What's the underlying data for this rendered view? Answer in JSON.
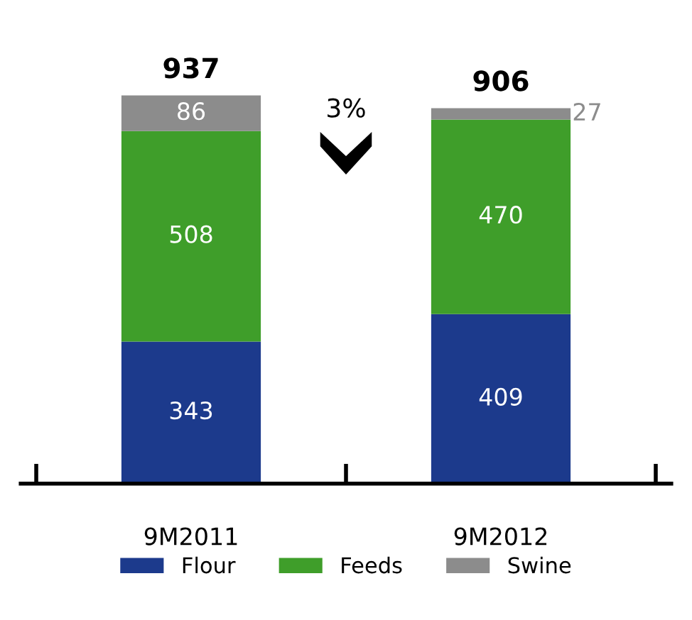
{
  "chart_data": {
    "type": "bar",
    "stacked": true,
    "categories": [
      "9M2011",
      "9M2012"
    ],
    "series": [
      {
        "name": "Flour",
        "color": "#1c3a8c",
        "values": [
          343,
          409
        ]
      },
      {
        "name": "Feeds",
        "color": "#3f9e2a",
        "values": [
          508,
          470
        ]
      },
      {
        "name": "Swine",
        "color": "#8c8c8c",
        "values": [
          86,
          27
        ]
      }
    ],
    "data_labels": true,
    "totals": [
      "937",
      "906"
    ],
    "annotations": [
      "3%"
    ],
    "legend": "bottom",
    "grid": false
  }
}
